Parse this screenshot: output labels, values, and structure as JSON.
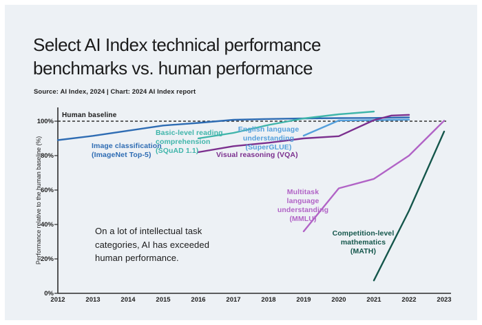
{
  "header": {
    "title": "Select AI Index technical performance\nbenchmarks vs. human performance",
    "source_line": "Source: AI Index, 2024 | Chart: 2024 AI Index report"
  },
  "annotation": "On a lot of intellectual task\ncategories, AI has exceeded\nhuman performance.",
  "colors": {
    "background": "#edf1f5",
    "frame": "#ffffff",
    "axis": "#2b2b2b",
    "baseline_dash": "#2f2f2f",
    "text": "#191919"
  },
  "chart_data": {
    "type": "line",
    "title": "Select AI Index technical performance benchmarks vs. human performance",
    "source": "Source: AI Index, 2024 | Chart: 2024 AI Index report",
    "xlabel": "",
    "ylabel": "Performance relative to the human baseline (%)",
    "xlim": [
      2012,
      2023
    ],
    "ylim": [
      0,
      107
    ],
    "grid": false,
    "legend_position": "inline-labels",
    "x_ticks": [
      2012,
      2013,
      2014,
      2015,
      2016,
      2017,
      2018,
      2019,
      2020,
      2021,
      2022,
      2023
    ],
    "y_ticks": [
      0,
      20,
      40,
      60,
      80,
      100
    ],
    "y_tick_suffix": "%",
    "baseline": {
      "label": "Human baseline",
      "value": 100,
      "style": "dashed"
    },
    "annotation": "On a lot of intellectual task categories, AI has exceeded human performance.",
    "series": [
      {
        "id": "image-classification",
        "name": "Image classification (ImageNet Top-5)",
        "label": "Image classification\n(ImageNet Top-5)",
        "color": "#2e6cb3",
        "points": [
          [
            2012,
            89
          ],
          [
            2013,
            91.5
          ],
          [
            2014,
            94.5
          ],
          [
            2015,
            97.5
          ],
          [
            2016,
            99
          ],
          [
            2017,
            100.8
          ],
          [
            2018,
            101.3
          ],
          [
            2019,
            101.6
          ],
          [
            2020,
            101.8
          ],
          [
            2021,
            101.9
          ],
          [
            2022,
            102.2
          ]
        ]
      },
      {
        "id": "squad",
        "name": "Basic-level reading comprehension (SQuAD 1.1)",
        "label": "Basic-level reading\ncomprehension\n(SQuAD 1.1)",
        "color": "#3fb5aa",
        "points": [
          [
            2016,
            90
          ],
          [
            2017,
            93.2
          ],
          [
            2018,
            97.8
          ],
          [
            2019,
            101.6
          ],
          [
            2020,
            104
          ],
          [
            2021,
            105.6
          ]
        ]
      },
      {
        "id": "superglue",
        "name": "English language understanding (SuperGLUE)",
        "label": "English language\nunderstanding (SuperGLUE)",
        "color": "#55a0dc",
        "points": [
          [
            2019,
            91.6
          ],
          [
            2020,
            100.4
          ],
          [
            2021,
            100.6
          ],
          [
            2022,
            100.9
          ]
        ]
      },
      {
        "id": "vqa",
        "name": "Visual reasoning (VQA)",
        "label": "Visual reasoning (VQA)",
        "color": "#7b2f8e",
        "points": [
          [
            2016,
            82
          ],
          [
            2017,
            85.5
          ],
          [
            2018,
            87.5
          ],
          [
            2019,
            90
          ],
          [
            2020,
            91.3
          ],
          [
            2021,
            100.6
          ],
          [
            2021.5,
            103.3
          ],
          [
            2022,
            103.7
          ]
        ]
      },
      {
        "id": "mmlu",
        "name": "Multitask language understanding (MMLU)",
        "label": "Multitask language\nunderstanding (MMLU)",
        "color": "#b163c6",
        "points": [
          [
            2019,
            36
          ],
          [
            2020,
            61
          ],
          [
            2021,
            66.5
          ],
          [
            2022,
            80
          ],
          [
            2023,
            100.3
          ]
        ]
      },
      {
        "id": "math",
        "name": "Competition-level mathematics (MATH)",
        "label": "Competition-level\nmathematics (MATH)",
        "color": "#14564b",
        "points": [
          [
            2021,
            7.5
          ],
          [
            2022,
            48
          ],
          [
            2023,
            94
          ]
        ]
      }
    ]
  }
}
